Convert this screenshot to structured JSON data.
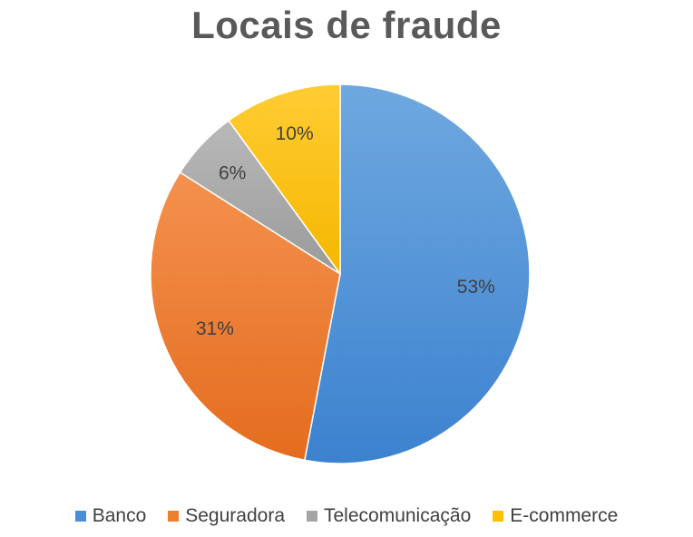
{
  "chart_data": {
    "type": "pie",
    "title": "Locais de fraude",
    "categories": [
      "Banco",
      "Seguradora",
      "Telecomunicação",
      "E-commerce"
    ],
    "values": [
      53,
      31,
      6,
      10
    ],
    "labels": [
      "53%",
      "31%",
      "6%",
      "10%"
    ],
    "colors": [
      "#4a90d9",
      "#ed7d31",
      "#a5a5a5",
      "#ffc000"
    ],
    "legend": "bottom"
  }
}
